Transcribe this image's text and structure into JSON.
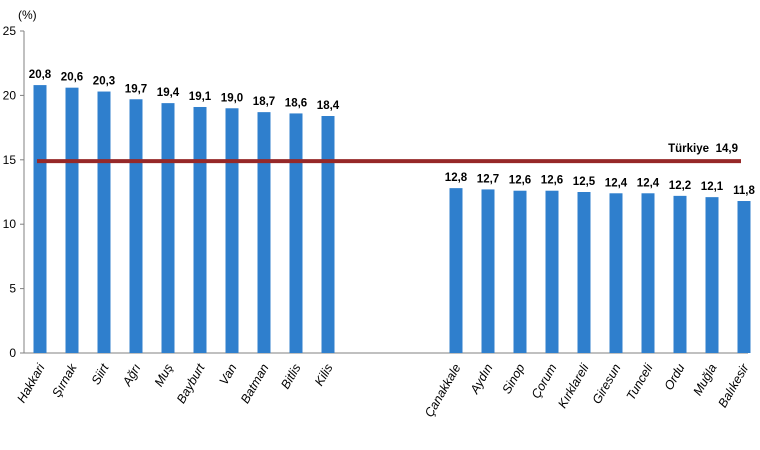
{
  "chart_data": {
    "type": "bar",
    "unit_label": "(%)",
    "categories": [
      "Hakkari",
      "Şırnak",
      "Siirt",
      "Ağrı",
      "Muş",
      "Bayburt",
      "Van",
      "Batman",
      "Bitlis",
      "Kilis",
      "Çanakkale",
      "Aydın",
      "Sinop",
      "Çorum",
      "Kırklareli",
      "Giresun",
      "Tunceli",
      "Ordu",
      "Muğla",
      "Balıkesir"
    ],
    "values": [
      20.8,
      20.6,
      20.3,
      19.7,
      19.4,
      19.1,
      19.0,
      18.7,
      18.6,
      18.4,
      12.8,
      12.7,
      12.6,
      12.6,
      12.5,
      12.4,
      12.4,
      12.2,
      12.1,
      11.8
    ],
    "value_labels": [
      "20,8",
      "20,6",
      "20,3",
      "19,7",
      "19,4",
      "19,1",
      "19,0",
      "18,7",
      "18,6",
      "18,4",
      "12,8",
      "12,7",
      "12,6",
      "12,6",
      "12,5",
      "12,4",
      "12,4",
      "12,2",
      "12,1",
      "11,8"
    ],
    "groups": [
      10,
      10
    ],
    "ylim": [
      0,
      25
    ],
    "yticks": [
      0,
      5,
      10,
      15,
      20,
      25
    ],
    "grid": false,
    "reference_line": {
      "value": 14.9,
      "label": "Türkiye",
      "value_label": "14,9"
    },
    "colors": {
      "bar": "#2f7fcd",
      "reference": "#962828",
      "axis": "#808080"
    }
  }
}
